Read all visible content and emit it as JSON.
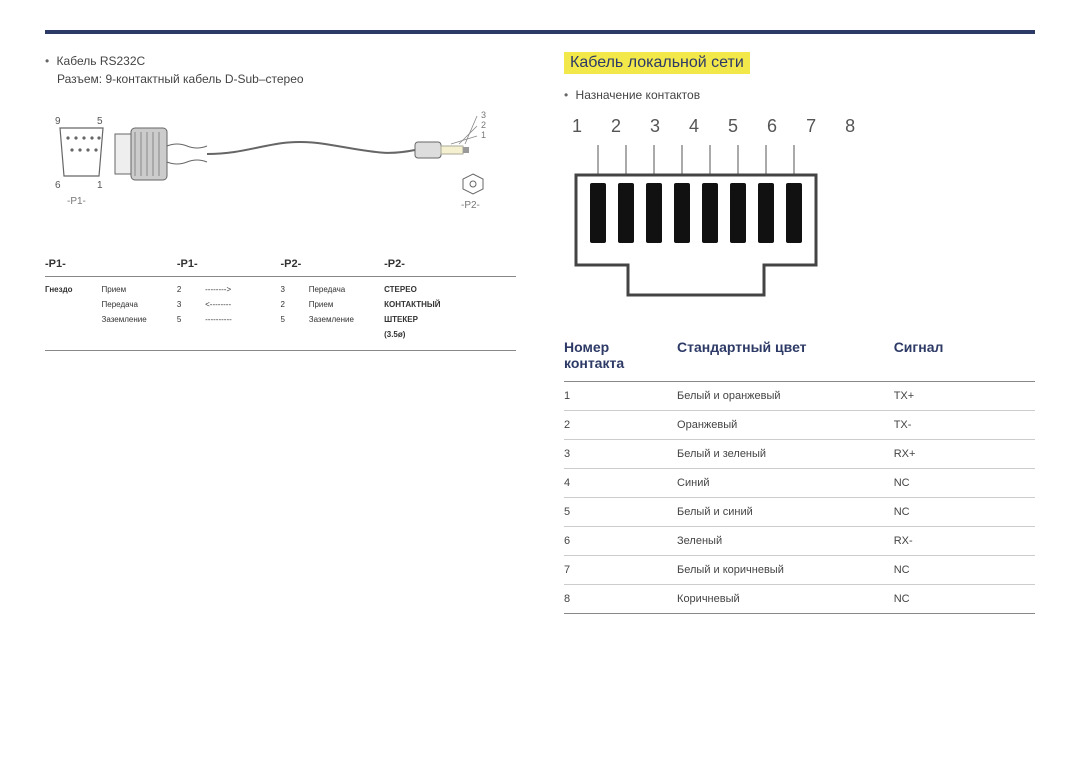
{
  "left": {
    "cable_label": "Кабель RS232C",
    "connector_desc": "Разъем: 9-контактный кабель D-Sub–стерео",
    "db9": {
      "top_left": "9",
      "top_right": "5",
      "bot_left": "6",
      "bot_right": "1",
      "p1_label": "-P1-",
      "tip_nums": [
        "3",
        "2",
        "1"
      ],
      "p2_label": "-P2-"
    },
    "pin_header": {
      "p1a": "-P1-",
      "p1b": "-P1-",
      "p2a": "-P2-",
      "p2b": "-P2-"
    },
    "pin_rows": [
      {
        "c0": "Гнездо",
        "c1": "Прием",
        "c2": "2",
        "c3": "-------->",
        "c4": "3",
        "c5": "Передача",
        "c6": "СТЕРЕО"
      },
      {
        "c0": "",
        "c1": "Передача",
        "c2": "3",
        "c3": "<--------",
        "c4": "2",
        "c5": "Прием",
        "c6": "КОНТАКТНЫЙ"
      },
      {
        "c0": "",
        "c1": "Заземление",
        "c2": "5",
        "c3": "----------",
        "c4": "5",
        "c5": "Заземление",
        "c6": "ШТЕКЕР"
      },
      {
        "c0": "",
        "c1": "",
        "c2": "",
        "c3": "",
        "c4": "",
        "c5": "",
        "c6": "(3.5ø)"
      }
    ]
  },
  "right": {
    "section_title": "Кабель локальной сети",
    "pin_assign_label": "Назначение контактов",
    "rj45_numbers": "1 2 3 4 5 6 7 8",
    "lan_header": {
      "pin": "Номер контакта",
      "color": "Стандартный цвет",
      "signal": "Сигнал"
    },
    "lan_rows": [
      {
        "pin": "1",
        "color": "Белый и оранжевый",
        "signal": "TX+"
      },
      {
        "pin": "2",
        "color": "Оранжевый",
        "signal": "TX-"
      },
      {
        "pin": "3",
        "color": "Белый и зеленый",
        "signal": "RX+"
      },
      {
        "pin": "4",
        "color": "Синий",
        "signal": "NC"
      },
      {
        "pin": "5",
        "color": "Белый и синий",
        "signal": "NC"
      },
      {
        "pin": "6",
        "color": "Зеленый",
        "signal": "RX-"
      },
      {
        "pin": "7",
        "color": "Белый и коричневый",
        "signal": "NC"
      },
      {
        "pin": "8",
        "color": "Коричневый",
        "signal": "NC"
      }
    ]
  },
  "style": {
    "accent": "#2d3a66",
    "highlight_bg": "#f2e84a",
    "rule_color": "#888888",
    "row_border": "#cccccc",
    "text": "#333333"
  }
}
